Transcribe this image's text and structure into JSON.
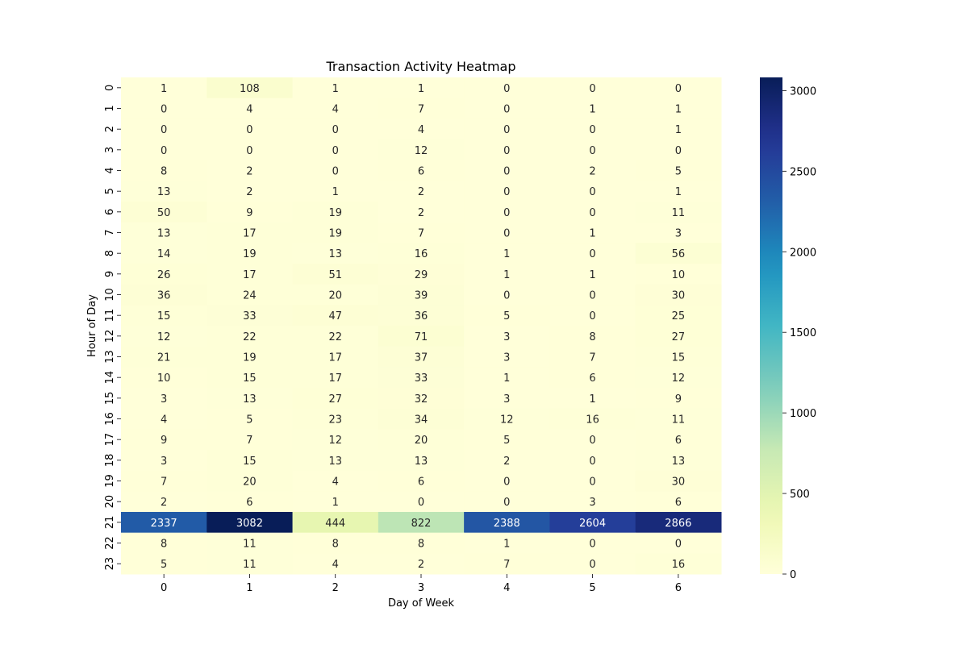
{
  "chart_data": {
    "type": "heatmap",
    "title": "Transaction Activity Heatmap",
    "xlabel": "Day of Week",
    "ylabel": "Hour of Day",
    "x_categories": [
      "0",
      "1",
      "2",
      "3",
      "4",
      "5",
      "6"
    ],
    "y_categories": [
      "0",
      "1",
      "2",
      "3",
      "4",
      "5",
      "6",
      "7",
      "8",
      "9",
      "10",
      "11",
      "12",
      "13",
      "14",
      "15",
      "16",
      "17",
      "18",
      "19",
      "20",
      "21",
      "22",
      "23"
    ],
    "values": [
      [
        1,
        108,
        1,
        1,
        0,
        0,
        0
      ],
      [
        0,
        4,
        4,
        7,
        0,
        1,
        1
      ],
      [
        0,
        0,
        0,
        4,
        0,
        0,
        1
      ],
      [
        0,
        0,
        0,
        12,
        0,
        0,
        0
      ],
      [
        8,
        2,
        0,
        6,
        0,
        2,
        5
      ],
      [
        13,
        2,
        1,
        2,
        0,
        0,
        1
      ],
      [
        50,
        9,
        19,
        2,
        0,
        0,
        11
      ],
      [
        13,
        17,
        19,
        7,
        0,
        1,
        3
      ],
      [
        14,
        19,
        13,
        16,
        1,
        0,
        56
      ],
      [
        26,
        17,
        51,
        29,
        1,
        1,
        10
      ],
      [
        36,
        24,
        20,
        39,
        0,
        0,
        30
      ],
      [
        15,
        33,
        47,
        36,
        5,
        0,
        25
      ],
      [
        12,
        22,
        22,
        71,
        3,
        8,
        27
      ],
      [
        21,
        19,
        17,
        37,
        3,
        7,
        15
      ],
      [
        10,
        15,
        17,
        33,
        1,
        6,
        12
      ],
      [
        3,
        13,
        27,
        32,
        3,
        1,
        9
      ],
      [
        4,
        5,
        23,
        34,
        12,
        16,
        11
      ],
      [
        9,
        7,
        12,
        20,
        5,
        0,
        6
      ],
      [
        3,
        15,
        13,
        13,
        2,
        0,
        13
      ],
      [
        7,
        20,
        4,
        6,
        0,
        0,
        30
      ],
      [
        2,
        6,
        1,
        0,
        0,
        3,
        6
      ],
      [
        2337,
        3082,
        444,
        822,
        2388,
        2604,
        2866
      ],
      [
        8,
        11,
        8,
        8,
        1,
        0,
        0
      ],
      [
        5,
        11,
        4,
        2,
        7,
        0,
        16
      ]
    ],
    "colormap": "YlGnBu",
    "vmin": 0,
    "vmax": 3082,
    "colorbar_ticks": [
      0,
      500,
      1000,
      1500,
      2000,
      2500,
      3000
    ],
    "annotations": true,
    "grid": false,
    "legend": "colorbar-right"
  }
}
